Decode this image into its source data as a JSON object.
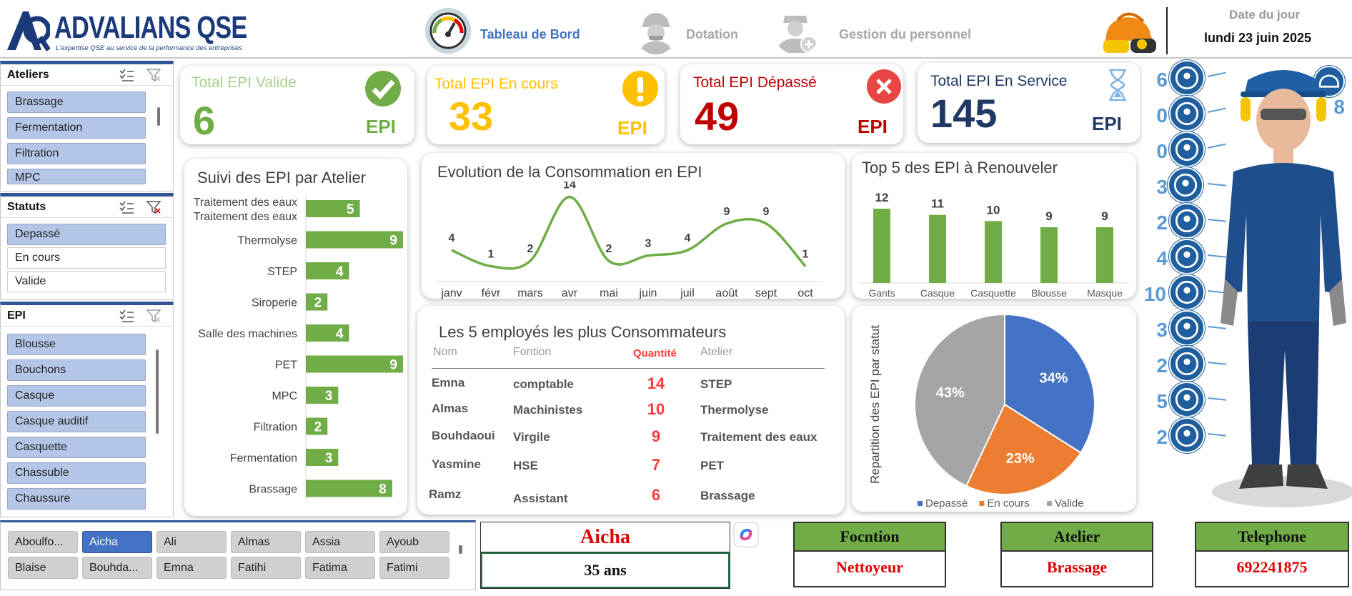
{
  "header": {
    "logo_name": "ADVALIANS QSE",
    "logo_tagline": "L'expertise QSE au service de la performance des entreprises",
    "nav": [
      {
        "label": "Tableau de Bord",
        "icon": "gauge-icon",
        "color": "#4472c4"
      },
      {
        "label": "Dotation",
        "icon": "worker-icon",
        "color": "#a6a6a6"
      },
      {
        "label": "Gestion du personnel",
        "icon": "add-person-icon",
        "color": "#a6a6a6"
      }
    ],
    "date_label": "Date du jour",
    "date_value": "lundi 23 juin 2025"
  },
  "slicers": {
    "ateliers": {
      "title": "Ateliers",
      "items": [
        "Brassage",
        "Fermentation",
        "Filtration",
        "MPC"
      ]
    },
    "statuts": {
      "title": "Statuts",
      "items": [
        {
          "label": "Depassé",
          "selected": true
        },
        {
          "label": "En cours",
          "selected": false
        },
        {
          "label": "Valide",
          "selected": false
        }
      ]
    },
    "epi": {
      "title": "EPI",
      "items": [
        "Blousse",
        "Bouchons",
        "Casque",
        "Casque auditif",
        "Casquette",
        "Chassuble",
        "Chaussure"
      ]
    }
  },
  "kpis": [
    {
      "title": "Total EPI Valide",
      "value": "6",
      "unit": "EPI",
      "color": "#70ad47",
      "icon": "check-icon"
    },
    {
      "title": "Total EPI En cours",
      "value": "33",
      "unit": "EPI",
      "color": "#ffc000",
      "icon": "exclamation-icon"
    },
    {
      "title": "Total EPI Dépassé",
      "value": "49",
      "unit": "EPI",
      "color": "#c00000",
      "icon": "close-icon"
    },
    {
      "title": "Total EPI En Service",
      "value": "145",
      "unit": "EPI",
      "color": "#1f3864",
      "icon": "hourglass-icon"
    }
  ],
  "chart_data": [
    {
      "type": "bar",
      "orientation": "horizontal",
      "title": "Suivi des EPI par Atelier",
      "categories": [
        "Traitement des eaux",
        "Thermolyse",
        "STEP",
        "Siroperie",
        "Salle des machines",
        "PET",
        "MPC",
        "Filtration",
        "Fermentation",
        "Brassage"
      ],
      "values": [
        5,
        9,
        4,
        2,
        4,
        9,
        3,
        2,
        3,
        8
      ],
      "color": "#70ad47",
      "xlim": [
        0,
        9
      ]
    },
    {
      "type": "line",
      "title": "Evolution de la Consommation en EPI",
      "categories": [
        "janv",
        "févr",
        "mars",
        "avr",
        "mai",
        "juin",
        "juil",
        "août",
        "sept",
        "oct"
      ],
      "values": [
        4,
        1,
        2,
        14,
        2,
        3,
        4,
        9,
        9,
        1
      ],
      "color": "#70ad47",
      "ylim": [
        0,
        15
      ]
    },
    {
      "type": "bar",
      "title": "Top 5 des EPI à Renouveler",
      "categories": [
        "Gants",
        "Casque",
        "Casquette",
        "Blousse",
        "Masque"
      ],
      "values": [
        12,
        11,
        10,
        9,
        9
      ],
      "color": "#70ad47",
      "ylim": [
        0,
        12
      ]
    },
    {
      "type": "pie",
      "ylabel": "Repartition des EPI par statut",
      "slices": [
        {
          "name": "Depassé",
          "value": 34,
          "label": "34%",
          "color": "#4472c4"
        },
        {
          "name": "En cours",
          "value": 23,
          "label": "23%",
          "color": "#ed7d31"
        },
        {
          "name": "Valide",
          "value": 43,
          "label": "43%",
          "color": "#a5a5a5"
        }
      ],
      "legend": "bottom"
    }
  ],
  "top_employees": {
    "title": "Les 5 employés les plus Consommateurs",
    "headers": [
      "Nom",
      "Fontion",
      "Quantité",
      "Atelier"
    ],
    "rows": [
      [
        "Emna",
        "comptable",
        "14",
        "STEP"
      ],
      [
        "Almas",
        "Machinistes",
        "10",
        "Thermolyse"
      ],
      [
        "Bouhdaoui",
        "Virgile",
        "9",
        "Traitement des eaux"
      ],
      [
        "Yasmine",
        "HSE",
        "7",
        "PET"
      ],
      [
        "Ramz",
        "Assistant",
        "6",
        "Brassage"
      ]
    ]
  },
  "employee_names": [
    "Aboulfo...",
    "Aicha",
    "Ali",
    "Almas",
    "Assia",
    "Ayoub",
    "Blaise",
    "Bouhda...",
    "Emna",
    "Fatihi",
    "Fatima",
    "Fatimi"
  ],
  "selected_employee": {
    "name": "Aicha",
    "age": "35 ans"
  },
  "info": [
    {
      "label": "Focntion",
      "value": "Nettoyeur"
    },
    {
      "label": "Atelier",
      "value": "Brassage"
    },
    {
      "label": "Telephone",
      "value": "692241875"
    }
  ],
  "ppe": [
    {
      "count": "6",
      "icon": "helmet-icon"
    },
    {
      "count": "0",
      "icon": "goggles-icon"
    },
    {
      "count": "0",
      "icon": "ear-protection-icon"
    },
    {
      "count": "3",
      "icon": "face-protection-icon"
    },
    {
      "count": "2",
      "icon": "harness-icon"
    },
    {
      "count": "4",
      "icon": "face-shield-icon"
    },
    {
      "count": "10",
      "icon": "gloves-icon"
    },
    {
      "count": "3",
      "icon": "vest-icon"
    },
    {
      "count": "2",
      "icon": "coverall-icon"
    },
    {
      "count": "5",
      "icon": "respirator-icon"
    },
    {
      "count": "2",
      "icon": "boots-icon"
    }
  ],
  "ppe_right": {
    "count": "8",
    "icon": "cap-icon"
  }
}
